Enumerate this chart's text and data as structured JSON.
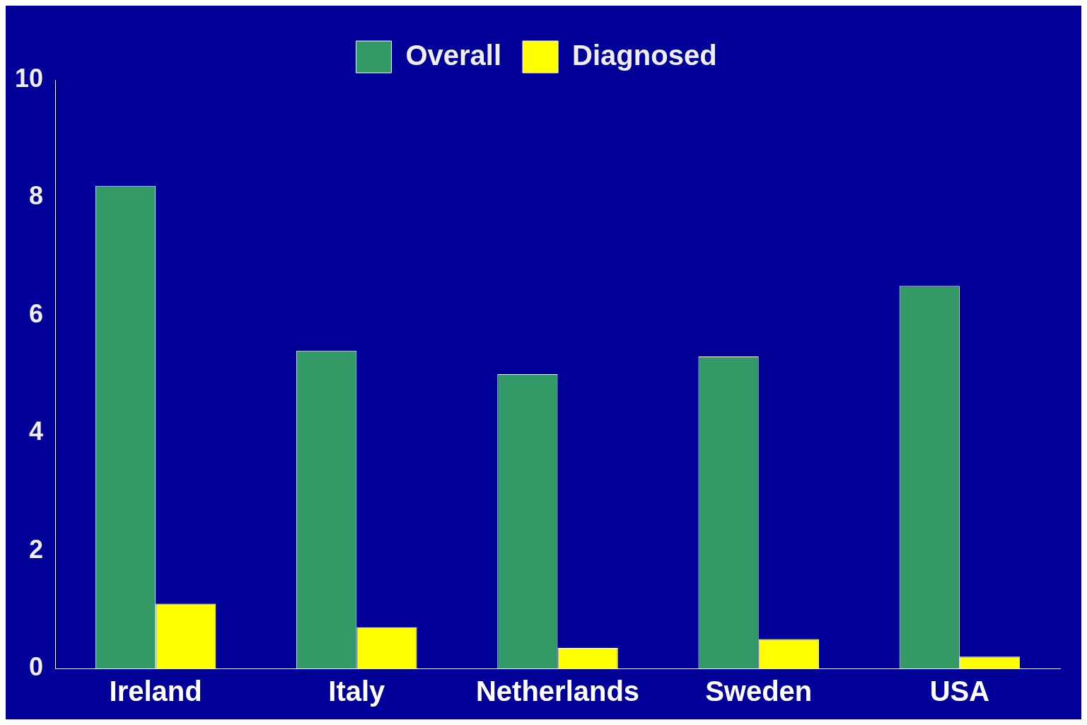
{
  "chart_data": {
    "type": "bar",
    "categories": [
      "Ireland",
      "Italy",
      "Netherlands",
      "Sweden",
      "USA"
    ],
    "series": [
      {
        "name": "Overall",
        "color": "#339966",
        "values": [
          8.2,
          5.4,
          5.0,
          5.3,
          6.5
        ]
      },
      {
        "name": "Diagnosed",
        "color": "#ffff00",
        "values": [
          1.1,
          0.7,
          0.35,
          0.5,
          0.2
        ]
      }
    ],
    "ylim": [
      0,
      10
    ],
    "yticks": [
      0,
      2,
      4,
      6,
      8,
      10
    ],
    "legend": "top"
  }
}
